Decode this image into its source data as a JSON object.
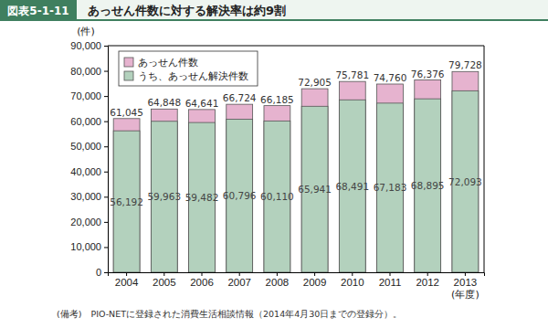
{
  "chart_data": {
    "type": "bar",
    "figure_id": "図表5-1-11",
    "title": "あっせん件数に対する解決率は約9割",
    "y_label": "(件)",
    "x_label": "(年度)",
    "note": "(備考)　PIO-NETに登録された消費生活相談情報（2014年4月30日までの登録分）。",
    "categories": [
      "2004",
      "2005",
      "2006",
      "2007",
      "2008",
      "2009",
      "2010",
      "2011",
      "2012",
      "2013"
    ],
    "series": [
      {
        "name": "あっせん件数",
        "color": "#e6b3cf",
        "values": [
          61045,
          64848,
          64641,
          66724,
          66185,
          72905,
          75781,
          74760,
          76376,
          79728
        ],
        "value_labels": [
          "61,045",
          "64,848",
          "64,641",
          "66,724",
          "66,185",
          "72,905",
          "75,781",
          "74,760",
          "76,376",
          "79,728"
        ]
      },
      {
        "name": "うち、あっせん解決件数",
        "color": "#b3d1bd",
        "values": [
          56192,
          59963,
          59482,
          60796,
          60110,
          65941,
          68491,
          67183,
          68895,
          72093
        ],
        "value_labels": [
          "56,192",
          "59,963",
          "59,482",
          "60,796",
          "60,110",
          "65,941",
          "68,491",
          "67,183",
          "68,895",
          "72,093"
        ]
      }
    ],
    "ylim": [
      0,
      90000
    ],
    "yticks": [
      0,
      {
        "value": 10000,
        "label": "10,000"
      },
      {
        "value": 20000,
        "label": "20,000"
      },
      {
        "value": 30000,
        "label": "30,000"
      },
      {
        "value": 40000,
        "label": "40,000"
      },
      {
        "value": 50000,
        "label": "50,000"
      },
      {
        "value": 60000,
        "label": "60,000"
      },
      {
        "value": 70000,
        "label": "70,000"
      },
      {
        "value": 80000,
        "label": "80,000"
      },
      {
        "value": 90000,
        "label": "90,000"
      }
    ],
    "grid": false,
    "stacked": false,
    "data_labels": true,
    "legend": "upper left"
  }
}
